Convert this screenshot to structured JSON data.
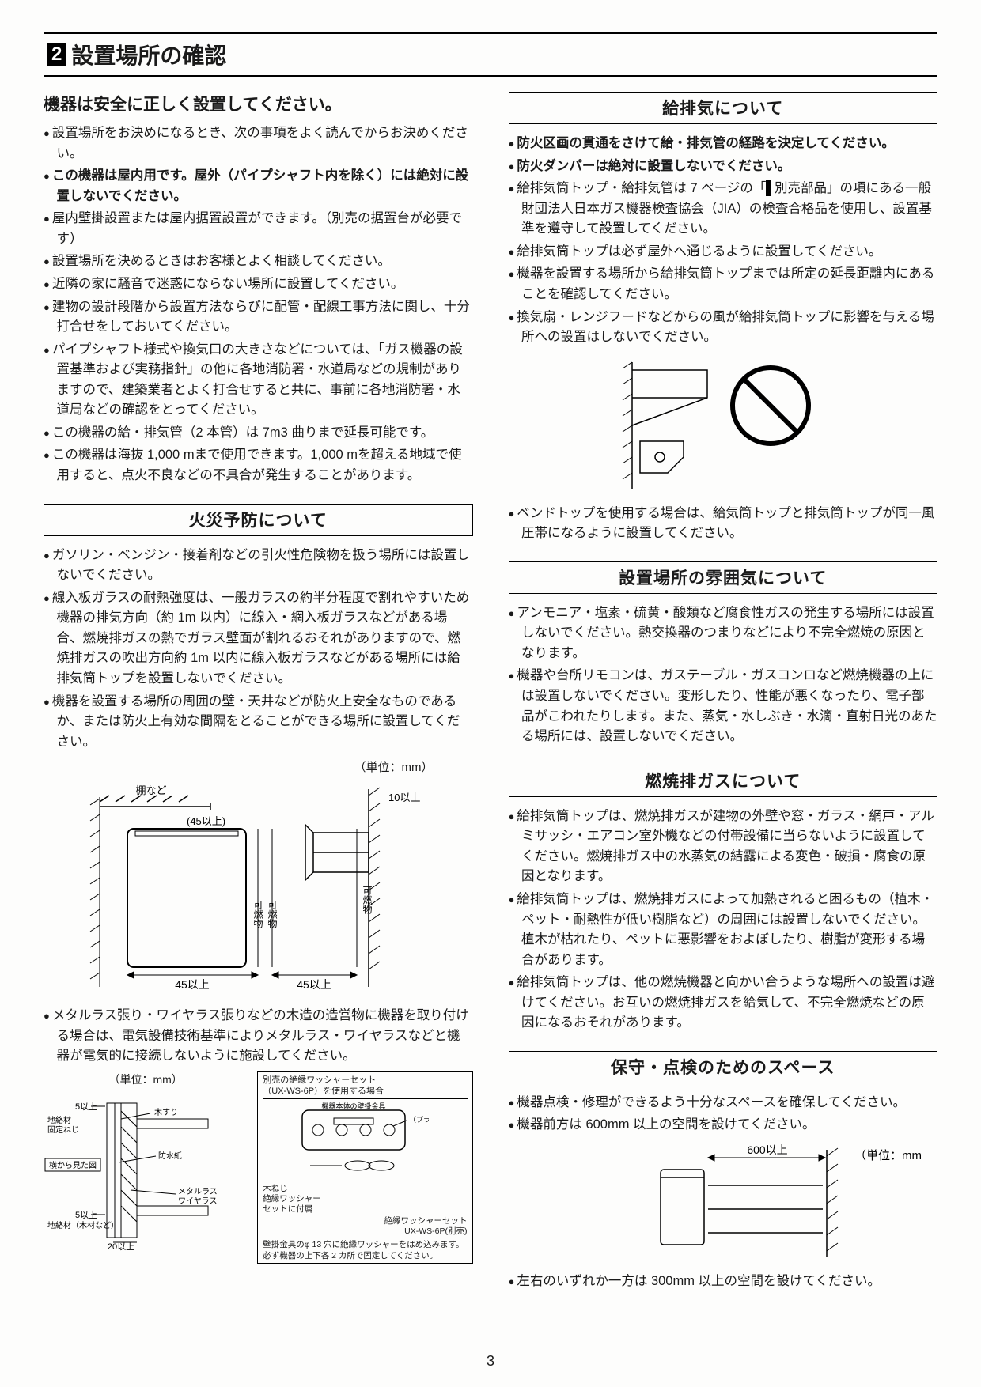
{
  "header": {
    "number": "2",
    "title": "設置場所の確認"
  },
  "lead": "機器は安全に正しく設置してください。",
  "left": {
    "intro_bullets": [
      {
        "t": "設置場所をお決めになるとき、次の事項をよく読んでからお決めください。",
        "bold": false
      },
      {
        "t": "この機器は屋内用です。屋外（パイプシャフト内を除く）には絶対に設置しないでください。",
        "bold": true
      },
      {
        "t": "屋内壁掛設置または屋内据置設置ができます。（別売の据置台が必要です）",
        "bold": false
      },
      {
        "t": "設置場所を決めるときはお客様とよく相談してください。",
        "bold": false
      },
      {
        "t": "近隣の家に騒音で迷惑にならない場所に設置してください。",
        "bold": false
      },
      {
        "t": "建物の設計段階から設置方法ならびに配管・配線工事方法に関し、十分打合せをしておいてください。",
        "bold": false
      },
      {
        "t": "パイプシャフト様式や換気口の大きさなどについては、「ガス機器の設置基準および実務指針」の他に各地消防署・水道局などの規制がありますので、建築業者とよく打合せすると共に、事前に各地消防署・水道局などの確認をとってください。",
        "bold": false
      },
      {
        "t": "この機器の給・排気管（2 本管）は 7m3 曲りまで延長可能です。",
        "bold": false
      },
      {
        "t": "この機器は海抜 1,000 mまで使用できます。1,000 mを超える地域で使用すると、点火不良などの不具合が発生することがあります。",
        "bold": false
      }
    ],
    "fire_title": "火災予防について",
    "fire_bullets": [
      {
        "t": "ガソリン・ベンジン・接着剤などの引火性危険物を扱う場所には設置しないでください。",
        "bold": false
      },
      {
        "t": "線入板ガラスの耐熱強度は、一般ガラスの約半分程度で割れやすいため機器の排気方向（約 1m 以内）に線入・網入板ガラスなどがある場合、燃焼排ガスの熱でガラス壁面が割れるおそれがありますので、燃焼排ガスの吹出方向約 1m 以内に線入板ガラスなどがある場所には給排気筒トップを設置しないでください。",
        "bold": false
      },
      {
        "t": "機器を設置する場所の周囲の壁・天井などが防火上安全なものであるか、または防火上有効な間隔をとることができる場所に設置してください。",
        "bold": false
      }
    ],
    "fig1": {
      "unit": "（単位：mm）",
      "l_top": "10以上",
      "l_45_1": "(45以上)",
      "l_45_2": "45以上",
      "l_45_3": "45以上",
      "l_tana": "棚など",
      "l_kanen": "可燃物"
    },
    "metal_bullet": "メタルラス張り・ワイヤラス張りなどの木造の造営物に機器を取り付ける場合は、電気設備技術基準によりメタルラス・ワイヤラスなどと機器が電気的に接続しないように施設してください。",
    "fig2_left": {
      "unit": "（単位：mm）",
      "l_5_1": "5以上",
      "l_5_2": "5以上",
      "l_20": "20以上",
      "l_jibeta": "地絡材\n固定ねじ",
      "l_kisuri": "木すり",
      "l_bosui": "防水紙",
      "l_metal": "メタルラス\nワイヤラス",
      "l_jibeta2": "地絡材（木材など）",
      "l_yoko": "横から見た図"
    },
    "fig2_right": {
      "title": "別売の絶縁ワッシャーセット\n（UX-WS-6P）を使用する場合",
      "l_hontai": "機器本体の壁掛金具",
      "l_plug": "（プラグ）",
      "l_kineji": "木ねじ\n絶縁ワッシャー\nセットに付属",
      "l_wset": "絶縁ワッシャーセット\nUX-WS-6P(別売)",
      "l_note": "壁掛金具のφ 13 穴に絶縁ワッシャーをはめ込みます。\n必ず機器の上下各 2 カ所で固定してください。"
    }
  },
  "right": {
    "vent_title": "給排気について",
    "vent_bullets_bold": [
      "防火区画の貫通をさけて給・排気管の経路を決定してください。",
      "防火ダンパーは絶対に設置しないでください。"
    ],
    "vent_bullets": [
      "給排気筒トップ・給排気管は 7 ページの「<BADGE>5</BADGE> 別売部品」の項にある一般財団法人日本ガス機器検査協会（JIA）の検査合格品を使用し、設置基準を遵守して設置してください。",
      "給排気筒トップは必ず屋外へ通じるように設置してください。",
      "機器を設置する場所から給排気筒トップまでは所定の延長距離内にあることを確認してください。",
      "換気扇・レンジフードなどからの風が給排気筒トップに影響を与える場所への設置はしないでください。"
    ],
    "vent_after": "ベンドトップを使用する場合は、給気筒トップと排気筒トップが同一風圧帯になるように設置してください。",
    "atmos_title": "設置場所の雰囲気について",
    "atmos_bullets": [
      "アンモニア・塩素・硫黄・酸類など腐食性ガスの発生する場所には設置しないでください。熱交換器のつまりなどにより不完全燃焼の原因となります。",
      "機器や台所リモコンは、ガステーブル・ガスコンロなど燃焼機器の上には設置しないでください。変形したり、性能が悪くなったり、電子部品がこわれたりします。また、蒸気・水しぶき・水滴・直射日光のあたる場所には、設置しないでください。"
    ],
    "exhaust_title": "燃焼排ガスについて",
    "exhaust_bullets": [
      "給排気筒トップは、燃焼排ガスが建物の外壁や窓・ガラス・網戸・アルミサッシ・エアコン室外機などの付帯設備に当らないように設置してください。燃焼排ガス中の水蒸気の結露による変色・破損・腐食の原因となります。",
      "給排気筒トップは、燃焼排ガスによって加熱されると困るもの（植木・ペット・耐熱性が低い樹脂など）の周囲には設置しないでください。植木が枯れたり、ペットに悪影響をおよぼしたり、樹脂が変形する場合があります。",
      "給排気筒トップは、他の燃焼機器と向かい合うような場所への設置は避けてください。お互いの燃焼排ガスを給気して、不完全燃焼などの原因になるおそれがあります。"
    ],
    "maint_title": "保守・点検のためのスペース",
    "maint_bullets": [
      "機器点検・修理ができるよう十分なスペースを確保してください。",
      "機器前方は 600mm 以上の空間を設けてください。"
    ],
    "maint_fig": {
      "l_600": "600以上",
      "unit": "（単位：mm）"
    },
    "maint_after": "左右のいずれか一方は 300mm 以上の空間を設けてください。"
  },
  "page": "3"
}
